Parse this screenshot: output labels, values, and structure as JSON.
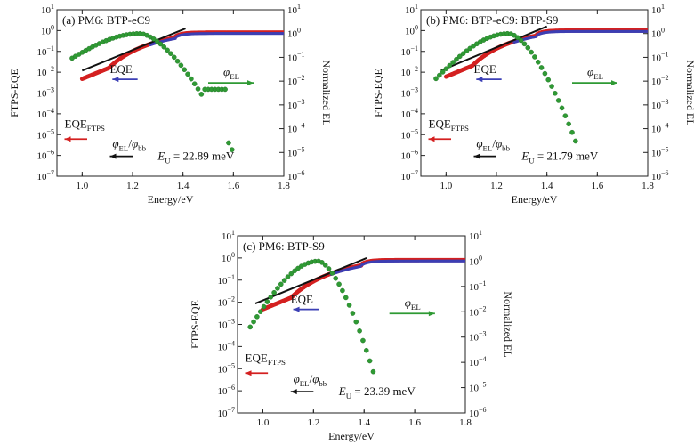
{
  "chart_data": [
    {
      "type": "scatter",
      "title": "(a) PM6: BTP-eC9",
      "xlabel": "Energy/eV",
      "ylabel_left": "FTPS-EQE",
      "ylabel_right": "Normalized EL",
      "xlim": [
        0.9,
        1.8
      ],
      "ylim_left_exp": [
        -7,
        1
      ],
      "ylim_right_exp": [
        -6,
        1
      ],
      "x_ticks": [
        "1.0",
        "1.2",
        "1.4",
        "1.6",
        "1.8"
      ],
      "y_left_exps": [
        -7,
        -6,
        -5,
        -4,
        -3,
        -2,
        -1,
        0,
        1
      ],
      "y_right_exps": [
        -6,
        -5,
        -4,
        -3,
        -2,
        -1,
        0,
        1
      ],
      "annotations": {
        "eqe": "EQE",
        "eqe_ftps_main": "EQE",
        "eqe_ftps_sub": "FTPS",
        "phi_el_main": "φ",
        "phi_el_sub": "EL",
        "ratio_phi1": "φ",
        "ratio_sub1": "EL",
        "ratio_slash": "/",
        "ratio_phi2": "φ",
        "ratio_sub2": "bb",
        "eu_main": "E",
        "eu_sub": "U",
        "eu_value": " = 22.89 meV"
      },
      "params": {
        "eg": 1.37,
        "tail_scale": 0.088,
        "floor": 1e-06,
        "floor_end": 1.08,
        "plateau": 0.8,
        "el_peak_x": 1.23,
        "el_max_x": 1.6,
        "el_sigma": 0.09,
        "el_floor_low": 0.08,
        "el_high_decade": 1.5,
        "line_x": [
          1.0,
          1.41
        ],
        "el_shoulder": [
          1.52,
          1.58,
          0.0045
        ]
      },
      "series": [
        {
          "name": "EQE",
          "color": "#3b3fb5",
          "x_range": [
            1.27,
            1.8
          ]
        },
        {
          "name": "EQE_FTPS",
          "color": "#d42020",
          "x_range": [
            1.0,
            1.8
          ]
        },
        {
          "name": "φ_EL",
          "color": "#2f9a34",
          "x_range": [
            0.96,
            1.6
          ]
        },
        {
          "name": "φ_EL/φ_bb",
          "color": "#111111",
          "x_range": [
            1.0,
            1.41
          ]
        }
      ]
    },
    {
      "type": "scatter",
      "title": "(b) PM6: BTP-eC9: BTP-S9",
      "xlabel": "Energy/eV",
      "ylabel_left": "FTPS-EQE",
      "ylabel_right": "Normalized EL",
      "xlim": [
        0.9,
        1.8
      ],
      "ylim_left_exp": [
        -7,
        1
      ],
      "ylim_right_exp": [
        -6,
        1
      ],
      "x_ticks": [
        "1.0",
        "1.2",
        "1.4",
        "1.6",
        "1.8"
      ],
      "y_left_exps": [
        -7,
        -6,
        -5,
        -4,
        -3,
        -2,
        -1,
        0,
        1
      ],
      "y_right_exps": [
        -6,
        -5,
        -4,
        -3,
        -2,
        -1,
        0,
        1
      ],
      "annotations": {
        "eqe": "EQE",
        "eqe_ftps_main": "EQE",
        "eqe_ftps_sub": "FTPS",
        "phi_el_main": "φ",
        "phi_el_sub": "EL",
        "ratio_phi1": "φ",
        "ratio_sub1": "EL",
        "ratio_slash": "/",
        "ratio_phi2": "φ",
        "ratio_sub2": "bb",
        "eu_main": "E",
        "eu_sub": "U",
        "eu_value": " = 21.79 meV"
      },
      "params": {
        "eg": 1.36,
        "tail_scale": 0.086,
        "floor": 1.5e-06,
        "floor_end": 1.1,
        "plateau": 1.0,
        "el_peak_x": 1.25,
        "el_max_x": 1.52,
        "el_sigma": 0.085,
        "el_floor_low": 0.01,
        "el_high_decade": 1.2,
        "line_x": [
          0.98,
          1.4
        ],
        "el_shoulder": [
          0,
          0,
          0
        ]
      },
      "series": [
        {
          "name": "EQE",
          "color": "#3b3fb5",
          "x_range": [
            1.27,
            1.8
          ]
        },
        {
          "name": "EQE_FTPS",
          "color": "#d42020",
          "x_range": [
            1.0,
            1.8
          ]
        },
        {
          "name": "φ_EL",
          "color": "#2f9a34",
          "x_range": [
            0.96,
            1.52
          ]
        },
        {
          "name": "φ_EL/φ_bb",
          "color": "#111111",
          "x_range": [
            0.98,
            1.4
          ]
        }
      ]
    },
    {
      "type": "scatter",
      "title": "(c) PM6: BTP-S9",
      "xlabel": "Energy/eV",
      "ylabel_left": "FTPS-EQE",
      "ylabel_right": "Normalized EL",
      "xlim": [
        0.9,
        1.8
      ],
      "ylim_left_exp": [
        -7,
        1
      ],
      "ylim_right_exp": [
        -6,
        1
      ],
      "x_ticks": [
        "1.0",
        "1.2",
        "1.4",
        "1.6",
        "1.8"
      ],
      "y_left_exps": [
        -7,
        -6,
        -5,
        -4,
        -3,
        -2,
        -1,
        0,
        1
      ],
      "y_right_exps": [
        -6,
        -5,
        -4,
        -3,
        -2,
        -1,
        0,
        1
      ],
      "annotations": {
        "eqe": "EQE",
        "eqe_ftps_main": "EQE",
        "eqe_ftps_sub": "FTPS",
        "phi_el_main": "φ",
        "phi_el_sub": "EL",
        "ratio_phi1": "φ",
        "ratio_sub1": "EL",
        "ratio_slash": "/",
        "ratio_phi2": "φ",
        "ratio_sub2": "bb",
        "eu_main": "E",
        "eu_sub": "U",
        "eu_value": " = 23.39 meV"
      },
      "params": {
        "eg": 1.39,
        "tail_scale": 0.093,
        "floor": 2e-06,
        "floor_end": 1.08,
        "plateau": 0.8,
        "el_peak_x": 1.22,
        "el_max_x": 1.44,
        "el_sigma": 0.085,
        "el_floor_low": 0.0025,
        "el_high_decade": 1.0,
        "line_x": [
          0.97,
          1.41
        ],
        "el_shoulder": [
          0,
          0,
          0
        ]
      },
      "series": [
        {
          "name": "EQE",
          "color": "#3b3fb5",
          "x_range": [
            1.27,
            1.8
          ]
        },
        {
          "name": "EQE_FTPS",
          "color": "#d42020",
          "x_range": [
            1.0,
            1.8
          ]
        },
        {
          "name": "φ_EL",
          "color": "#2f9a34",
          "x_range": [
            0.95,
            1.44
          ]
        },
        {
          "name": "φ_EL/φ_bb",
          "color": "#111111",
          "x_range": [
            0.97,
            1.41
          ]
        }
      ]
    }
  ]
}
